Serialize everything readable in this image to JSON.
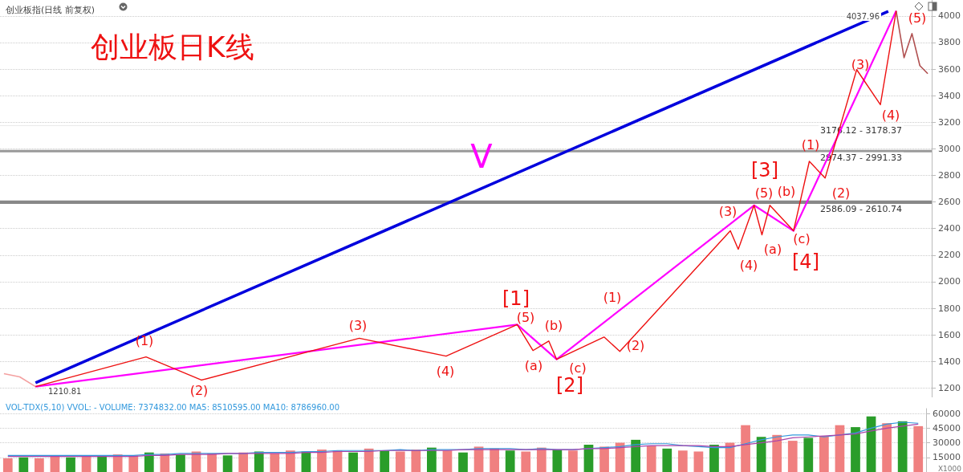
{
  "chart_data": [
    {
      "type": "line",
      "title": "创业板指(日线 前复权)",
      "categories": [
        null,
        null,
        null,
        null,
        null,
        null,
        null,
        null,
        null,
        null,
        null,
        null,
        null,
        null,
        null,
        null,
        null,
        null,
        null,
        null,
        null,
        null,
        null,
        null,
        null,
        null,
        null,
        null,
        null,
        null,
        null,
        null,
        null,
        null,
        null,
        null,
        null,
        null,
        null,
        null,
        null,
        null,
        null,
        null,
        null,
        null,
        null,
        null,
        null,
        null,
        null,
        null,
        null,
        null,
        null,
        null,
        null,
        null,
        null,
        null,
        null,
        null,
        null,
        null,
        null,
        null,
        null,
        null,
        null,
        null,
        null,
        null,
        null,
        null,
        null,
        null,
        null,
        null,
        null,
        null,
        null,
        null,
        null,
        null,
        null,
        null,
        null,
        null,
        null,
        null,
        null,
        null,
        null,
        null,
        null,
        null,
        null,
        null,
        null,
        null,
        null,
        null,
        null,
        null,
        null,
        null,
        null,
        null,
        null,
        null,
        null,
        null,
        null,
        null,
        null,
        null,
        null,
        null
      ],
      "ylim": [
        1130,
        4120
      ],
      "yticks": [
        1200,
        1400,
        1600,
        1800,
        2000,
        2200,
        2400,
        2600,
        2800,
        3000,
        3200,
        3400,
        3600,
        3800,
        4000
      ],
      "tick_labels": "y",
      "grid": "y",
      "marker": "none",
      "series": [
        {
          "color": "#f4a0a0",
          "values": [
            1308,
            null,
            1284,
            null,
            1210.81,
            null,
            null,
            null,
            null,
            null,
            null,
            null,
            null,
            null,
            null,
            null,
            null,
            null,
            null,
            null,
            null,
            null,
            null,
            null,
            null,
            null,
            null,
            null,
            null,
            null,
            null,
            null,
            null,
            null,
            null,
            null,
            null,
            null,
            null,
            null,
            null,
            null,
            null,
            null,
            null,
            null,
            null,
            null,
            null,
            null,
            null,
            null,
            null,
            null,
            null,
            null,
            null,
            null,
            null,
            null,
            null,
            null,
            null,
            null,
            null,
            null,
            null,
            null,
            null,
            null,
            null,
            null,
            null,
            null,
            null,
            null,
            null,
            null,
            null,
            null,
            null,
            null,
            null,
            null,
            null,
            null,
            null,
            null,
            null,
            null,
            null,
            null,
            null,
            null,
            null,
            null,
            null,
            null,
            null,
            null,
            null,
            null,
            null,
            null,
            null,
            null,
            null,
            null,
            null,
            null,
            null,
            null,
            null,
            null,
            null,
            null,
            null,
            null
          ]
        },
        {
          "color": "#b05050",
          "values": [
            null,
            null,
            null,
            null,
            null,
            null,
            null,
            null,
            null,
            null,
            null,
            null,
            null,
            null,
            null,
            null,
            null,
            null,
            null,
            null,
            null,
            null,
            null,
            null,
            null,
            null,
            null,
            null,
            null,
            null,
            null,
            null,
            null,
            null,
            null,
            null,
            null,
            null,
            null,
            null,
            null,
            null,
            null,
            null,
            null,
            null,
            null,
            null,
            null,
            null,
            null,
            null,
            null,
            null,
            null,
            null,
            null,
            null,
            null,
            null,
            null,
            null,
            null,
            null,
            null,
            null,
            null,
            null,
            null,
            null,
            null,
            null,
            null,
            null,
            null,
            null,
            null,
            null,
            null,
            null,
            null,
            null,
            null,
            null,
            null,
            null,
            null,
            null,
            null,
            null,
            null,
            null,
            null,
            null,
            null,
            null,
            null,
            null,
            null,
            null,
            null,
            null,
            null,
            null,
            null,
            null,
            null,
            null,
            null,
            null,
            null,
            null,
            null,
            4037.96,
            3686,
            3867,
            3626,
            3566
          ]
        },
        {
          "color": "#0000dd",
          "values": [
            null,
            null,
            null,
            null,
            1240,
            null,
            null,
            null,
            null,
            null,
            null,
            null,
            null,
            null,
            null,
            null,
            null,
            null,
            null,
            null,
            null,
            null,
            null,
            null,
            null,
            null,
            null,
            null,
            null,
            null,
            null,
            null,
            null,
            null,
            null,
            null,
            null,
            null,
            null,
            null,
            null,
            null,
            null,
            null,
            null,
            null,
            null,
            null,
            null,
            null,
            null,
            null,
            null,
            null,
            null,
            null,
            null,
            null,
            null,
            null,
            null,
            null,
            null,
            null,
            null,
            null,
            null,
            null,
            null,
            null,
            null,
            null,
            null,
            null,
            null,
            null,
            null,
            null,
            null,
            null,
            null,
            null,
            null,
            null,
            null,
            null,
            null,
            null,
            null,
            null,
            null,
            null,
            null,
            null,
            null,
            null,
            null,
            null,
            null,
            null,
            null,
            null,
            null,
            null,
            null,
            null,
            null,
            null,
            null,
            null,
            null,
            null,
            4035,
            null,
            null,
            null,
            null,
            null
          ]
        },
        {
          "color": "#ff00ff",
          "values": [
            null,
            null,
            null,
            null,
            1210.81,
            null,
            null,
            null,
            null,
            null,
            null,
            null,
            null,
            null,
            null,
            null,
            null,
            null,
            null,
            null,
            null,
            null,
            null,
            null,
            null,
            null,
            null,
            null,
            null,
            null,
            null,
            null,
            null,
            null,
            null,
            null,
            null,
            null,
            null,
            null,
            null,
            null,
            null,
            null,
            null,
            null,
            null,
            null,
            null,
            null,
            null,
            null,
            null,
            null,
            null,
            null,
            null,
            null,
            null,
            null,
            null,
            null,
            null,
            null,
            null,
            1677,
            null,
            null,
            null,
            null,
            1416,
            null,
            null,
            null,
            null,
            null,
            null,
            null,
            null,
            null,
            null,
            null,
            null,
            null,
            null,
            null,
            null,
            null,
            null,
            null,
            null,
            null,
            null,
            null,
            null,
            2575,
            null,
            null,
            null,
            null,
            2383,
            null,
            null,
            null,
            null,
            null,
            null,
            null,
            null,
            null,
            null,
            null,
            null,
            4037.96,
            null,
            null,
            null,
            null
          ]
        },
        {
          "color": "#ee1111",
          "values": [
            null,
            null,
            null,
            null,
            1210.81,
            null,
            null,
            null,
            null,
            null,
            null,
            null,
            null,
            null,
            null,
            null,
            null,
            null,
            1434,
            null,
            null,
            null,
            null,
            null,
            null,
            1260,
            null,
            null,
            null,
            null,
            null,
            null,
            null,
            null,
            null,
            null,
            null,
            null,
            null,
            null,
            null,
            null,
            null,
            null,
            null,
            1575,
            null,
            null,
            null,
            null,
            null,
            null,
            null,
            null,
            null,
            null,
            1440,
            null,
            null,
            null,
            null,
            null,
            null,
            null,
            null,
            1677,
            null,
            1482,
            null,
            1554,
            1416,
            null,
            null,
            null,
            null,
            null,
            1584,
            null,
            1476,
            null,
            null,
            null,
            null,
            null,
            null,
            null,
            null,
            null,
            null,
            null,
            null,
            null,
            2383,
            2245,
            null,
            2575,
            2353,
            2575,
            null,
            null,
            2383,
            null,
            2906,
            null,
            2780,
            null,
            null,
            null,
            3596,
            null,
            null,
            3332,
            null,
            4037.96,
            null,
            null,
            null,
            null
          ]
        }
      ],
      "bands": [
        {
          "axis": "y",
          "from": 2586.09,
          "to": 2610.74,
          "label": "2586.09 - 2610.74",
          "color": "#888888"
        },
        {
          "axis": "y",
          "from": 2974.37,
          "to": 2991.33,
          "label": "2974.37 - 2991.33",
          "color": "#999999"
        },
        {
          "axis": "y",
          "from": 3176.12,
          "to": 3178.37,
          "label": "3176.12 - 3178.37",
          "color": "#aaaaaa"
        }
      ],
      "annotations": [
        "创业板日K线",
        "V",
        "4037.96",
        "1210.81",
        "(1)",
        "(2)",
        "(3)",
        "(4)",
        "(5)",
        "[1]",
        "(a)",
        "(b)",
        "(c)",
        "[2]",
        "(1)",
        "(2)",
        "(3)",
        "(4)",
        "(5)",
        "[3]",
        "(a)",
        "(b)",
        "(c)",
        "[4]",
        "(1)",
        "(2)",
        "(3)",
        "(4)",
        "(5)"
      ]
    },
    {
      "type": "bar",
      "title": "VOL-TDX(5,10) VVOL: - VOLUME: 7374832.00 MA5: 8510595.00 MA10: 8786960.00",
      "categories": [
        null,
        null,
        null,
        null,
        null,
        null,
        null,
        null,
        null,
        null,
        null,
        null,
        null,
        null,
        null,
        null,
        null,
        null,
        null,
        null,
        null,
        null,
        null,
        null,
        null,
        null,
        null,
        null,
        null,
        null,
        null,
        null,
        null,
        null,
        null,
        null,
        null,
        null,
        null,
        null,
        null,
        null,
        null,
        null,
        null,
        null,
        null,
        null,
        null,
        null,
        null,
        null,
        null,
        null,
        null,
        null,
        null,
        null,
        null
      ],
      "ylim": [
        0,
        65000
      ],
      "yticks": [
        15000,
        30000,
        45000,
        60000
      ],
      "tick_labels": "y",
      "grid": "y",
      "series": [
        {
          "type": "bar",
          "colors": [
            "#f08080",
            "#2a9d2a",
            "#f08080",
            "#f08080",
            "#2a9d2a",
            "#f08080",
            "#2a9d2a",
            "#f08080",
            "#f08080",
            "#2a9d2a",
            "#f08080",
            "#2a9d2a",
            "#f08080",
            "#f08080",
            "#2a9d2a",
            "#f08080",
            "#2a9d2a",
            "#f08080",
            "#f08080",
            "#2a9d2a",
            "#f08080",
            "#f08080",
            "#2a9d2a",
            "#f08080",
            "#2a9d2a",
            "#f08080",
            "#f08080",
            "#2a9d2a",
            "#f08080",
            "#2a9d2a",
            "#f08080",
            "#f08080",
            "#2a9d2a",
            "#f08080",
            "#f08080",
            "#2a9d2a",
            "#f08080",
            "#2a9d2a",
            "#f08080",
            "#f08080",
            "#2a9d2a",
            "#f08080",
            "#2a9d2a",
            "#f08080",
            "#f08080",
            "#2a9d2a",
            "#f08080",
            "#f08080",
            "#2a9d2a",
            "#f08080",
            "#f08080",
            "#2a9d2a",
            "#f08080",
            "#f08080",
            "#2a9d2a",
            "#2a9d2a",
            "#f08080",
            "#2a9d2a",
            "#f08080"
          ],
          "values": [
            14000,
            15000,
            14000,
            16000,
            15000,
            17000,
            16000,
            18000,
            17000,
            20000,
            19000,
            18000,
            21000,
            19000,
            17000,
            20000,
            21000,
            19000,
            22000,
            21000,
            23000,
            22000,
            20000,
            24000,
            22000,
            21000,
            23000,
            25000,
            22000,
            20000,
            26000,
            24000,
            22000,
            21000,
            25000,
            23000,
            22000,
            28000,
            26000,
            30000,
            33000,
            27000,
            24000,
            22000,
            21000,
            28000,
            30000,
            48000,
            36000,
            38000,
            32000,
            35000,
            37000,
            48000,
            46000,
            57000,
            50000,
            52000,
            47000
          ]
        },
        {
          "type": "line",
          "color": "#3399dd",
          "values": [
            17000,
            17000,
            17000,
            17000,
            17000,
            17000,
            17000,
            17000,
            17000,
            18000,
            18000,
            19000,
            19000,
            19000,
            19000,
            19000,
            20000,
            20000,
            20000,
            21000,
            21000,
            22000,
            22000,
            22000,
            22000,
            23000,
            22000,
            23000,
            23000,
            23000,
            24000,
            24000,
            24000,
            23000,
            24000,
            23000,
            23000,
            24000,
            25000,
            26000,
            28000,
            29000,
            29000,
            27000,
            26000,
            25000,
            25000,
            29000,
            33000,
            36000,
            38000,
            38000,
            36000,
            38000,
            40000,
            45000,
            49000,
            51000,
            50000
          ]
        },
        {
          "type": "line",
          "color": "#aa44aa",
          "values": [
            16000,
            16000,
            16000,
            16000,
            16000,
            16000,
            16000,
            16000,
            16000,
            17000,
            17000,
            18000,
            18000,
            18000,
            19000,
            19000,
            19000,
            19000,
            19000,
            20000,
            20000,
            21000,
            21000,
            21000,
            22000,
            22000,
            22000,
            22000,
            22000,
            23000,
            23000,
            23000,
            23000,
            23000,
            23000,
            23000,
            23000,
            24000,
            24000,
            25000,
            26000,
            27000,
            27000,
            27000,
            27000,
            26000,
            26000,
            28000,
            30000,
            32000,
            35000,
            36000,
            37000,
            38000,
            39000,
            42000,
            45000,
            47000,
            49000
          ]
        }
      ],
      "annotations": [
        "X1000"
      ]
    }
  ]
}
